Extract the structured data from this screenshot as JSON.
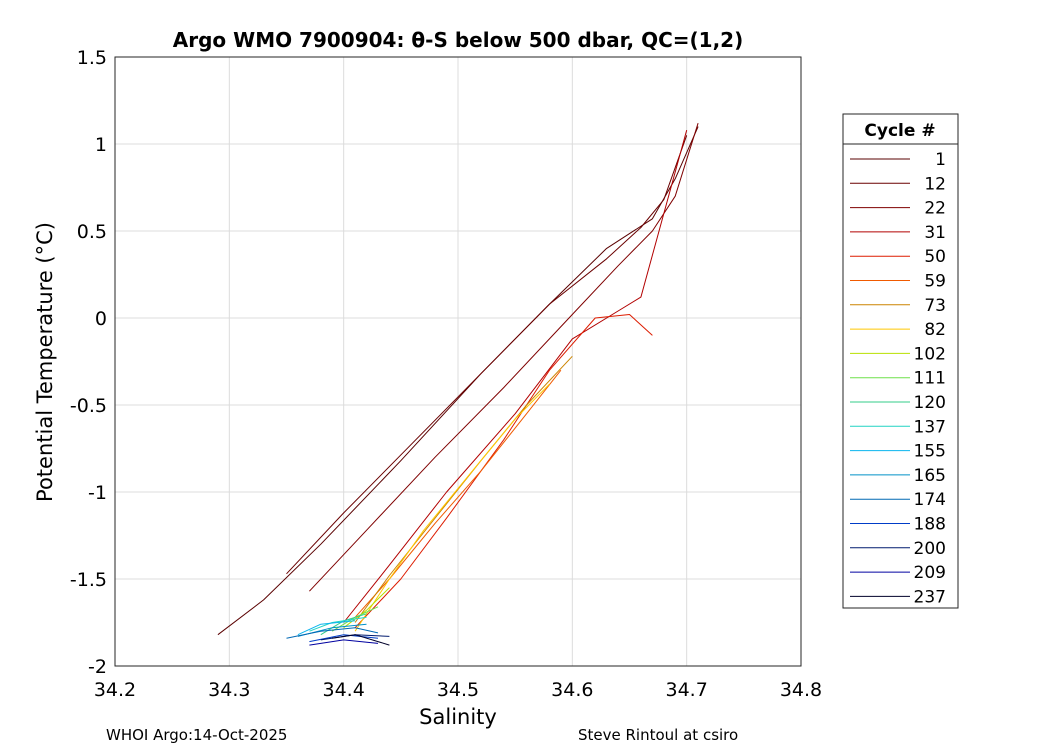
{
  "chart_data": {
    "type": "line",
    "title": "Argo WMO 7900904: θ-S below 500 dbar,  QC=(1,2)",
    "xlabel": "Salinity",
    "ylabel": "Potential Temperature (°C)",
    "xlim": [
      34.2,
      34.8
    ],
    "ylim": [
      -2,
      1.5
    ],
    "x_ticks": [
      "34.2",
      "34.3",
      "34.4",
      "34.5",
      "34.6",
      "34.7",
      "34.8"
    ],
    "y_ticks": [
      "-2",
      "-1.5",
      "-1",
      "-0.5",
      "0",
      "0.5",
      "1",
      "1.5"
    ],
    "grid": true,
    "legend_title": "Cycle #",
    "legend_position": "right-outside",
    "series": [
      {
        "name": "1",
        "color": "#5a0000",
        "x": [
          34.29,
          34.33,
          34.38,
          34.45,
          34.52,
          34.58,
          34.63,
          34.67,
          34.69,
          34.71
        ],
        "y": [
          -1.82,
          -1.62,
          -1.3,
          -0.82,
          -0.32,
          0.08,
          0.4,
          0.57,
          0.8,
          1.1
        ]
      },
      {
        "name": "12",
        "color": "#6a0000",
        "x": [
          34.35,
          34.4,
          34.46,
          34.52,
          34.58,
          34.63,
          34.66,
          34.68,
          34.7
        ],
        "y": [
          -1.47,
          -1.12,
          -0.72,
          -0.32,
          0.08,
          0.34,
          0.52,
          0.68,
          1.05
        ]
      },
      {
        "name": "22",
        "color": "#7f0000",
        "x": [
          34.37,
          34.42,
          34.48,
          34.54,
          34.6,
          34.64,
          34.67,
          34.69,
          34.71
        ],
        "y": [
          -1.57,
          -1.22,
          -0.8,
          -0.4,
          0.02,
          0.3,
          0.5,
          0.7,
          1.12
        ]
      },
      {
        "name": "31",
        "color": "#b20000",
        "x": [
          34.4,
          34.44,
          34.49,
          34.55,
          34.6,
          34.64,
          34.66,
          34.68,
          34.7
        ],
        "y": [
          -1.75,
          -1.42,
          -1.0,
          -0.55,
          -0.12,
          0.04,
          0.12,
          0.6,
          1.08
        ]
      },
      {
        "name": "50",
        "color": "#dd1c00",
        "x": [
          34.41,
          34.45,
          34.49,
          34.54,
          34.58,
          34.62,
          34.65,
          34.67
        ],
        "y": [
          -1.78,
          -1.5,
          -1.15,
          -0.7,
          -0.3,
          0.0,
          0.02,
          -0.1
        ]
      },
      {
        "name": "59",
        "color": "#f05a00",
        "x": [
          34.41,
          34.44,
          34.48,
          34.52,
          34.56,
          34.59
        ],
        "y": [
          -1.72,
          -1.5,
          -1.18,
          -0.88,
          -0.55,
          -0.3
        ]
      },
      {
        "name": "73",
        "color": "#cc8400",
        "x": [
          34.41,
          34.44,
          34.48,
          34.52,
          34.56,
          34.6
        ],
        "y": [
          -1.75,
          -1.48,
          -1.15,
          -0.82,
          -0.5,
          -0.22
        ]
      },
      {
        "name": "82",
        "color": "#ffc800",
        "x": [
          34.41,
          34.44,
          34.47,
          34.51,
          34.55,
          34.58
        ],
        "y": [
          -1.8,
          -1.5,
          -1.22,
          -0.9,
          -0.58,
          -0.38
        ]
      },
      {
        "name": "102",
        "color": "#b8e000",
        "x": [
          34.4,
          34.42,
          34.44
        ],
        "y": [
          -1.78,
          -1.68,
          -1.55
        ]
      },
      {
        "name": "111",
        "color": "#6ee04a",
        "x": [
          34.39,
          34.41,
          34.43
        ],
        "y": [
          -1.8,
          -1.72,
          -1.66
        ]
      },
      {
        "name": "120",
        "color": "#33cc88",
        "x": [
          34.38,
          34.4,
          34.42
        ],
        "y": [
          -1.82,
          -1.74,
          -1.7
        ]
      },
      {
        "name": "137",
        "color": "#22d4c4",
        "x": [
          34.37,
          34.39,
          34.42
        ],
        "y": [
          -1.8,
          -1.75,
          -1.72
        ]
      },
      {
        "name": "155",
        "color": "#0ab4ee",
        "x": [
          34.36,
          34.38,
          34.41
        ],
        "y": [
          -1.82,
          -1.76,
          -1.74
        ]
      },
      {
        "name": "165",
        "color": "#0090c8",
        "x": [
          34.36,
          34.39,
          34.42
        ],
        "y": [
          -1.83,
          -1.78,
          -1.76
        ]
      },
      {
        "name": "174",
        "color": "#0068b4",
        "x": [
          34.35,
          34.38,
          34.41,
          34.43
        ],
        "y": [
          -1.84,
          -1.8,
          -1.78,
          -1.81
        ]
      },
      {
        "name": "188",
        "color": "#003cc8",
        "x": [
          34.37,
          34.4,
          34.43
        ],
        "y": [
          -1.86,
          -1.82,
          -1.84
        ]
      },
      {
        "name": "200",
        "color": "#001a6e",
        "x": [
          34.38,
          34.41,
          34.44
        ],
        "y": [
          -1.85,
          -1.82,
          -1.83
        ]
      },
      {
        "name": "209",
        "color": "#0000a0",
        "x": [
          34.37,
          34.4,
          34.43
        ],
        "y": [
          -1.88,
          -1.85,
          -1.87
        ]
      },
      {
        "name": "237",
        "color": "#00002a",
        "x": [
          34.39,
          34.41,
          34.43,
          34.44
        ],
        "y": [
          -1.84,
          -1.82,
          -1.86,
          -1.88
        ]
      }
    ]
  },
  "footer": {
    "left": "WHOI Argo:14-Oct-2025",
    "right": "Steve Rintoul at csiro"
  }
}
